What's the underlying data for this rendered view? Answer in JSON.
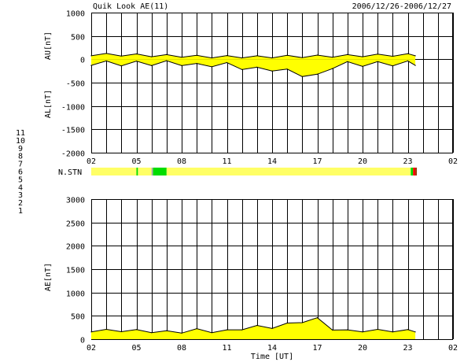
{
  "header": {
    "title": "Quik Look AE(11)",
    "date_range": "2006/12/26-2006/12/27"
  },
  "colors": {
    "fill": "#ffff00",
    "grid": "#000000",
    "station_scale": [
      "#1a1aff",
      "#cc00cc",
      "#993300",
      "#00cc99",
      "#aaaaaa",
      "#ff0000",
      "#00dd00",
      "#ffff66",
      "#6633cc",
      "#ff66ff",
      "#00cccc"
    ]
  },
  "station_legend": {
    "labels": [
      "11",
      "10",
      "9",
      "8",
      "7",
      "6",
      "5",
      "4",
      "3",
      "2",
      "1"
    ],
    "colors": [
      "#00cccc",
      "#ff66ff",
      "#6633cc",
      "#ffff66",
      "#00dd00",
      "#ff0000",
      "#aaaaaa",
      "#999999",
      "#00cc99",
      "#993300",
      "#1a1aff"
    ]
  },
  "chart_data": [
    {
      "type": "area",
      "id": "au_al",
      "title": "",
      "xlabel": "",
      "ylabel_top": "AU[nT]",
      "ylabel_bottom": "AL[nT]",
      "ylim": [
        -2000,
        1000
      ],
      "yticks": [
        "1000",
        "500",
        "0",
        "-500",
        "-1000",
        "-1500",
        "-2000"
      ],
      "x_hours": [
        2,
        3,
        4,
        5,
        6,
        7,
        8,
        9,
        10,
        11,
        12,
        13,
        14,
        15,
        16,
        17,
        18,
        19,
        20,
        21,
        22,
        23,
        23.5
      ],
      "xtick_labels": [
        "02",
        "05",
        "08",
        "11",
        "14",
        "17",
        "20",
        "23",
        "02"
      ],
      "xlim_hours": [
        2,
        26
      ],
      "grid": true,
      "series": [
        {
          "values": [
            100,
            100,
            95,
            90,
            80,
            75,
            70,
            60,
            55,
            55,
            55,
            50,
            55,
            60,
            60,
            65,
            70,
            75,
            80,
            85,
            90,
            95,
            100
          ]
        },
        {
          "values": [
            -80,
            -85,
            -90,
            -90,
            -85,
            -80,
            -85,
            -140,
            -110,
            -120,
            -170,
            -220,
            -200,
            -260,
            -320,
            -370,
            -150,
            -100,
            -100,
            -100,
            -90,
            -85,
            -80
          ]
        }
      ]
    },
    {
      "type": "heatmap",
      "id": "n_stn",
      "ylabel": "N.STN",
      "segments": [
        {
          "start_hour": 2.0,
          "end_hour": 5.0,
          "stations": 8
        },
        {
          "start_hour": 5.0,
          "end_hour": 5.1,
          "stations": 7
        },
        {
          "start_hour": 5.1,
          "end_hour": 6.0,
          "stations": 8
        },
        {
          "start_hour": 6.0,
          "end_hour": 6.1,
          "stations": 5
        },
        {
          "start_hour": 6.1,
          "end_hour": 7.0,
          "stations": 7
        },
        {
          "start_hour": 7.0,
          "end_hour": 23.2,
          "stations": 8
        },
        {
          "start_hour": 23.2,
          "end_hour": 23.35,
          "stations": 7
        },
        {
          "start_hour": 23.35,
          "end_hour": 23.5,
          "stations": 6
        },
        {
          "start_hour": 23.5,
          "end_hour": 23.6,
          "stations": 3
        }
      ]
    },
    {
      "type": "area",
      "id": "ae",
      "title": "",
      "xlabel": "Time [UT]",
      "ylabel": "AE[nT]",
      "ylim": [
        0,
        3000
      ],
      "yticks": [
        "3000",
        "2500",
        "2000",
        "1500",
        "1000",
        "500",
        "0"
      ],
      "x_hours": [
        2,
        3,
        4,
        5,
        6,
        7,
        8,
        9,
        10,
        11,
        12,
        13,
        14,
        15,
        16,
        17,
        18,
        19,
        20,
        21,
        22,
        23,
        23.5
      ],
      "xtick_labels": [
        "02",
        "05",
        "08",
        "11",
        "14",
        "17",
        "20",
        "23",
        "02"
      ],
      "xlim_hours": [
        2,
        26
      ],
      "grid": true,
      "series": [
        {
          "values": [
            180,
            185,
            185,
            180,
            165,
            155,
            155,
            200,
            165,
            175,
            225,
            270,
            255,
            320,
            380,
            435,
            220,
            175,
            180,
            185,
            180,
            180,
            180
          ]
        }
      ]
    }
  ]
}
